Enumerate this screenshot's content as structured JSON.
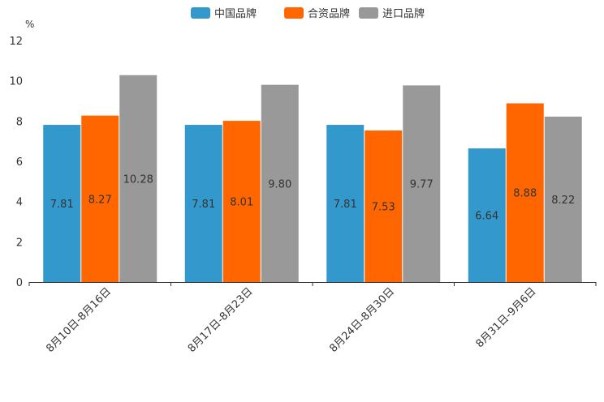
{
  "chart_data": {
    "type": "bar",
    "title": "",
    "ylabel": "%",
    "xlabel": "",
    "ylim": [
      0,
      12
    ],
    "yticks": [
      0,
      2,
      4,
      6,
      8,
      10,
      12
    ],
    "legend_position": "top-center",
    "categories": [
      "8月10日-8月16日",
      "8月17日-8月23日",
      "8月24日-8月30日",
      "8月31日-9月6日"
    ],
    "series": [
      {
        "name": "中国品牌",
        "color": "#3399cc",
        "values": [
          7.81,
          7.81,
          7.81,
          6.64
        ],
        "labels": [
          "7.81",
          "7.81",
          "7.81",
          "6.64"
        ]
      },
      {
        "name": "合资品牌",
        "color": "#ff6600",
        "values": [
          8.27,
          8.01,
          7.53,
          8.88
        ],
        "labels": [
          "8.27",
          "8.01",
          "7.53",
          "8.88"
        ]
      },
      {
        "name": "进口品牌",
        "color": "#999999",
        "values": [
          10.28,
          9.8,
          9.77,
          8.22
        ],
        "labels": [
          "10.28",
          "9.80",
          "9.77",
          "8.22"
        ]
      }
    ]
  }
}
